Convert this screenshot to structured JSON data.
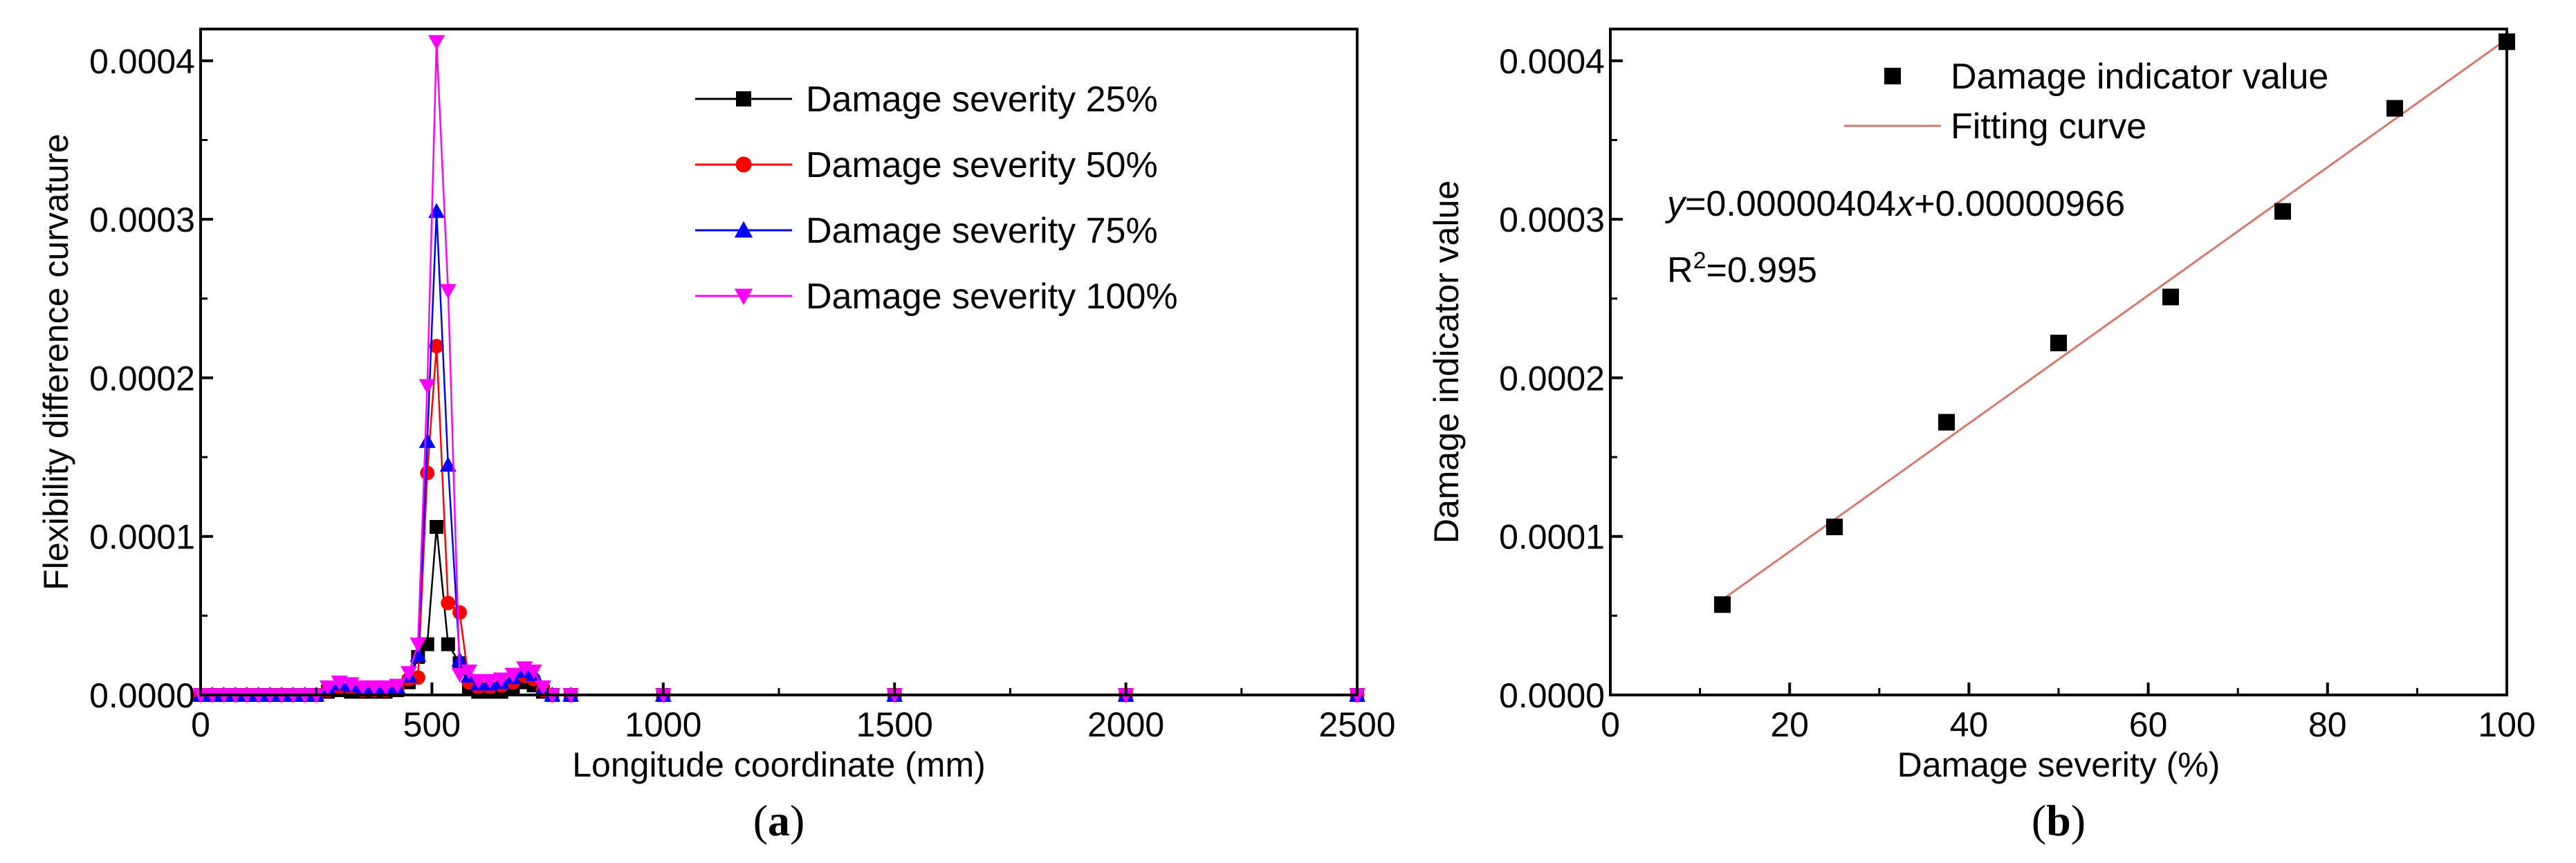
{
  "chart_data": [
    {
      "type": "line",
      "xlabel": "Longitude coordinate (mm)",
      "ylabel": "Flexibility difference curvature",
      "xlim": [
        0,
        2500
      ],
      "ylim": [
        0,
        0.00042
      ],
      "xticks": [
        0,
        500,
        1000,
        1500,
        2000,
        2500
      ],
      "xtick_labels": [
        "0",
        "500",
        "1000",
        "1500",
        "2000",
        "2500"
      ],
      "yticks": [
        0,
        0.0001,
        0.0002,
        0.0003,
        0.0004
      ],
      "ytick_labels": [
        "0.0000",
        "0.0001",
        "0.0002",
        "0.0003",
        "0.0004"
      ],
      "grid": false,
      "legend": "top-right",
      "caption": "(a)",
      "caption_parts": [
        "(",
        "a",
        ")"
      ],
      "series": [
        {
          "name": "Damage severity 25%",
          "color": "#000000",
          "marker": "square",
          "x": [
            0,
            25,
            50,
            75,
            100,
            125,
            150,
            175,
            200,
            225,
            250,
            275,
            300,
            325,
            350,
            375,
            400,
            425,
            450,
            470,
            490,
            510,
            535,
            560,
            580,
            600,
            625,
            650,
            675,
            700,
            720,
            740,
            760,
            800,
            1000,
            1500,
            2000,
            2500
          ],
          "y": [
            0,
            0,
            0,
            0,
            0,
            0,
            0,
            0,
            0,
            0,
            0,
            2e-06,
            3e-06,
            2e-06,
            2e-06,
            2e-06,
            2e-06,
            3e-06,
            8e-06,
            2.4e-05,
            3.2e-05,
            0.000106,
            3.2e-05,
            2e-05,
            5e-06,
            2e-06,
            2e-06,
            2e-06,
            4e-06,
            8e-06,
            6e-06,
            2e-06,
            0,
            0,
            0,
            0,
            0,
            0
          ]
        },
        {
          "name": "Damage severity 50%",
          "color": "#ff0000",
          "marker": "circle",
          "x": [
            0,
            25,
            50,
            75,
            100,
            125,
            150,
            175,
            200,
            225,
            250,
            275,
            300,
            325,
            350,
            375,
            400,
            425,
            450,
            470,
            490,
            510,
            535,
            560,
            580,
            600,
            625,
            650,
            675,
            700,
            720,
            740,
            760,
            800,
            1000,
            1500,
            2000,
            2500
          ],
          "y": [
            0,
            0,
            0,
            0,
            0,
            0,
            0,
            0,
            0,
            0,
            0,
            3e-06,
            5e-06,
            4e-06,
            3e-06,
            3e-06,
            3e-06,
            4e-06,
            1e-05,
            1.1e-05,
            0.00014,
            0.00022,
            5.8e-05,
            5.2e-05,
            8e-06,
            5e-06,
            5e-06,
            6e-06,
            8e-06,
            1.2e-05,
            1e-05,
            3e-06,
            0,
            0,
            0,
            0,
            0,
            0
          ]
        },
        {
          "name": "Damage severity 75%",
          "color": "#0000ff",
          "marker": "triangle-up",
          "x": [
            0,
            25,
            50,
            75,
            100,
            125,
            150,
            175,
            200,
            225,
            250,
            275,
            300,
            325,
            350,
            375,
            400,
            425,
            450,
            470,
            490,
            510,
            535,
            560,
            580,
            600,
            625,
            650,
            675,
            700,
            720,
            740,
            760,
            800,
            1000,
            1500,
            2000,
            2500
          ],
          "y": [
            0,
            0,
            0,
            0,
            0,
            0,
            0,
            0,
            0,
            0,
            0,
            4e-06,
            7e-06,
            6e-06,
            4e-06,
            4e-06,
            4e-06,
            5e-06,
            1.2e-05,
            2.5e-05,
            0.00016,
            0.000305,
            0.000145,
            2.2e-05,
            1.2e-05,
            7e-06,
            7e-06,
            8e-06,
            1.1e-05,
            1.5e-05,
            1.3e-05,
            4e-06,
            0,
            0,
            0,
            0,
            0,
            0
          ]
        },
        {
          "name": "Damage severity 100%",
          "color": "#ff00ff",
          "marker": "triangle-down",
          "x": [
            0,
            25,
            50,
            75,
            100,
            125,
            150,
            175,
            200,
            225,
            250,
            275,
            300,
            325,
            350,
            375,
            400,
            425,
            450,
            470,
            490,
            510,
            535,
            560,
            580,
            600,
            625,
            650,
            675,
            700,
            720,
            740,
            760,
            800,
            1000,
            1500,
            2000,
            2500
          ],
          "y": [
            0,
            0,
            0,
            0,
            0,
            0,
            0,
            0,
            0,
            0,
            0,
            5e-06,
            8e-06,
            7e-06,
            5e-06,
            5e-06,
            5e-06,
            6e-06,
            1.4e-05,
            3.2e-05,
            0.000195,
            0.000412,
            0.000255,
            1.3e-05,
            1.5e-05,
            9e-06,
            9e-06,
            1e-05,
            1.3e-05,
            1.7e-05,
            1.5e-05,
            5e-06,
            0,
            0,
            0,
            0,
            0,
            0
          ]
        }
      ]
    },
    {
      "type": "scatter",
      "xlabel": "Damage severity (%)",
      "ylabel": "Damage indicator value",
      "xlim": [
        0,
        100
      ],
      "ylim": [
        0,
        0.00042
      ],
      "xticks": [
        0,
        20,
        40,
        60,
        80,
        100
      ],
      "xtick_labels": [
        "0",
        "20",
        "40",
        "60",
        "80",
        "100"
      ],
      "yticks": [
        0,
        0.0001,
        0.0002,
        0.0003,
        0.0004
      ],
      "ytick_labels": [
        "0.0000",
        "0.0001",
        "0.0002",
        "0.0003",
        "0.0004"
      ],
      "grid": false,
      "legend": "top",
      "caption": "(b)",
      "caption_parts": [
        "(",
        "b",
        ")"
      ],
      "series": [
        {
          "name": "Damage indicator value",
          "color": "#000000",
          "marker": "square",
          "x": [
            12.5,
            25,
            37.5,
            50,
            62.5,
            75,
            87.5,
            100
          ],
          "y": [
            5.7e-05,
            0.000106,
            0.000172,
            0.000222,
            0.000251,
            0.000305,
            0.00037,
            0.000412
          ]
        }
      ],
      "fit": {
        "name": "Fitting curve",
        "color": "#d9776e",
        "slope": 4.04e-06,
        "intercept": 9.66e-06,
        "x_range": [
          12.5,
          100
        ]
      },
      "annotations": {
        "equation_y": "y",
        "equation_mid": "=0.00000404",
        "equation_x": "x",
        "equation_end": "+0.00000966",
        "r2_prefix": "R",
        "r2_sup": "2",
        "r2_value": "=0.995"
      }
    }
  ]
}
